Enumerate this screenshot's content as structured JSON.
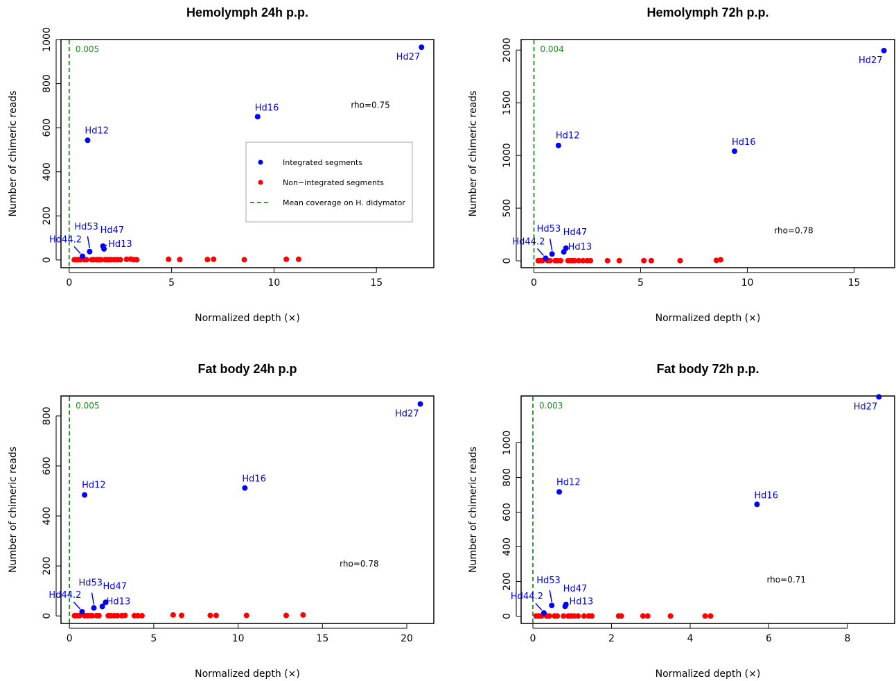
{
  "chart_data": [
    {
      "type": "scatter",
      "title": "Hemolymph 24h p.p.",
      "xlabel": "Normalized depth (×)",
      "ylabel": "Number of chimeric reads",
      "xlim": [
        -0.4,
        17.8
      ],
      "ylim": [
        -35,
        1000
      ],
      "xticks": [
        0,
        5,
        10,
        15
      ],
      "yticks": [
        0,
        200,
        400,
        600,
        800,
        1000
      ],
      "mean_coverage_value": "0.005",
      "rho": "rho=0.75",
      "integrated": [
        {
          "label": "Hd27",
          "x": 17.2,
          "y": 965
        },
        {
          "label": "Hd16",
          "x": 9.2,
          "y": 650
        },
        {
          "label": "Hd12",
          "x": 0.9,
          "y": 543
        },
        {
          "label": "Hd53",
          "x": 1.0,
          "y": 38
        },
        {
          "label": "Hd44.2",
          "x": 0.65,
          "y": 17
        },
        {
          "label": "Hd47",
          "x": 1.65,
          "y": 63
        },
        {
          "label": "Hd13",
          "x": 1.7,
          "y": 50
        }
      ],
      "non_integrated": [
        {
          "x": 0.25,
          "y": 1
        },
        {
          "x": 0.35,
          "y": 1
        },
        {
          "x": 0.45,
          "y": 1
        },
        {
          "x": 0.55,
          "y": 1
        },
        {
          "x": 0.75,
          "y": 1
        },
        {
          "x": 0.85,
          "y": 1
        },
        {
          "x": 1.1,
          "y": 1
        },
        {
          "x": 1.2,
          "y": 1
        },
        {
          "x": 1.35,
          "y": 1
        },
        {
          "x": 1.45,
          "y": 1
        },
        {
          "x": 1.55,
          "y": 1
        },
        {
          "x": 1.75,
          "y": 1
        },
        {
          "x": 1.85,
          "y": 1
        },
        {
          "x": 1.95,
          "y": 1
        },
        {
          "x": 2.05,
          "y": 1
        },
        {
          "x": 2.2,
          "y": 1
        },
        {
          "x": 2.35,
          "y": 1
        },
        {
          "x": 2.5,
          "y": 1
        },
        {
          "x": 2.8,
          "y": 3
        },
        {
          "x": 3.0,
          "y": 4
        },
        {
          "x": 3.15,
          "y": 1
        },
        {
          "x": 3.3,
          "y": 1
        },
        {
          "x": 4.85,
          "y": 3
        },
        {
          "x": 5.4,
          "y": 2
        },
        {
          "x": 6.75,
          "y": 2
        },
        {
          "x": 7.05,
          "y": 3
        },
        {
          "x": 8.55,
          "y": 1
        },
        {
          "x": 10.6,
          "y": 3
        },
        {
          "x": 11.2,
          "y": 3
        }
      ],
      "legend": {
        "position": "center-right",
        "entries": [
          "Integrated segments",
          "Non−integrated segments",
          "Mean coverage on H. didymator"
        ]
      }
    },
    {
      "type": "scatter",
      "title": "Hemolymph 72h p.p.",
      "xlabel": "Normalized depth (×)",
      "ylabel": "Number of chimeric reads",
      "xlim": [
        -0.6,
        16.9
      ],
      "ylim": [
        -65,
        2100
      ],
      "xticks": [
        0,
        5,
        10,
        15
      ],
      "yticks": [
        0,
        500,
        1000,
        1500,
        2000
      ],
      "mean_coverage_value": "0.004",
      "rho": "rho=0.78",
      "integrated": [
        {
          "label": "Hd27",
          "x": 16.4,
          "y": 1995
        },
        {
          "label": "Hd12",
          "x": 1.15,
          "y": 1095
        },
        {
          "label": "Hd16",
          "x": 9.4,
          "y": 1040
        },
        {
          "label": "Hd53",
          "x": 0.85,
          "y": 65
        },
        {
          "label": "Hd44.2",
          "x": 0.55,
          "y": 25
        },
        {
          "label": "Hd47",
          "x": 1.5,
          "y": 120
        },
        {
          "label": "Hd13",
          "x": 1.4,
          "y": 85
        }
      ],
      "non_integrated": [
        {
          "x": 0.2,
          "y": 2
        },
        {
          "x": 0.3,
          "y": 2
        },
        {
          "x": 0.4,
          "y": 2
        },
        {
          "x": 0.65,
          "y": 2
        },
        {
          "x": 0.75,
          "y": 2
        },
        {
          "x": 1.0,
          "y": 2
        },
        {
          "x": 1.1,
          "y": 2
        },
        {
          "x": 1.25,
          "y": 2
        },
        {
          "x": 1.6,
          "y": 2
        },
        {
          "x": 1.7,
          "y": 2
        },
        {
          "x": 1.8,
          "y": 2
        },
        {
          "x": 1.9,
          "y": 2
        },
        {
          "x": 2.1,
          "y": 2
        },
        {
          "x": 2.3,
          "y": 2
        },
        {
          "x": 2.5,
          "y": 2
        },
        {
          "x": 2.65,
          "y": 2
        },
        {
          "x": 3.45,
          "y": 2
        },
        {
          "x": 4.0,
          "y": 2
        },
        {
          "x": 5.15,
          "y": 2
        },
        {
          "x": 5.5,
          "y": 2
        },
        {
          "x": 6.85,
          "y": 2
        },
        {
          "x": 8.55,
          "y": 5
        },
        {
          "x": 8.75,
          "y": 10
        }
      ],
      "legend": null
    },
    {
      "type": "scatter",
      "title": "Fat body 24h p.p",
      "xlabel": "Normalized depth (×)",
      "ylabel": "Number of chimeric reads",
      "xlim": [
        -0.5,
        21.6
      ],
      "ylim": [
        -30,
        880
      ],
      "xticks": [
        0,
        5,
        10,
        15,
        20
      ],
      "yticks": [
        0,
        200,
        400,
        600,
        800
      ],
      "mean_coverage_value": "0.005",
      "rho": "rho=0.78",
      "integrated": [
        {
          "label": "Hd27",
          "x": 20.8,
          "y": 848
        },
        {
          "label": "Hd16",
          "x": 10.4,
          "y": 512
        },
        {
          "label": "Hd12",
          "x": 0.9,
          "y": 484
        },
        {
          "label": "Hd53",
          "x": 1.45,
          "y": 32
        },
        {
          "label": "Hd44.2",
          "x": 0.75,
          "y": 17
        },
        {
          "label": "Hd47",
          "x": 2.15,
          "y": 55
        },
        {
          "label": "Hd13",
          "x": 1.95,
          "y": 38
        }
      ],
      "non_integrated": [
        {
          "x": 0.3,
          "y": 1
        },
        {
          "x": 0.45,
          "y": 1
        },
        {
          "x": 0.6,
          "y": 1
        },
        {
          "x": 0.9,
          "y": 1
        },
        {
          "x": 1.05,
          "y": 1
        },
        {
          "x": 1.2,
          "y": 1
        },
        {
          "x": 1.35,
          "y": 1
        },
        {
          "x": 1.6,
          "y": 1
        },
        {
          "x": 1.75,
          "y": 1
        },
        {
          "x": 2.3,
          "y": 1
        },
        {
          "x": 2.45,
          "y": 1
        },
        {
          "x": 2.65,
          "y": 1
        },
        {
          "x": 2.85,
          "y": 1
        },
        {
          "x": 3.1,
          "y": 1
        },
        {
          "x": 3.3,
          "y": 2
        },
        {
          "x": 3.85,
          "y": 1
        },
        {
          "x": 4.05,
          "y": 1
        },
        {
          "x": 4.3,
          "y": 1
        },
        {
          "x": 6.15,
          "y": 4
        },
        {
          "x": 6.65,
          "y": 2
        },
        {
          "x": 8.35,
          "y": 2
        },
        {
          "x": 8.7,
          "y": 2
        },
        {
          "x": 10.5,
          "y": 2
        },
        {
          "x": 12.85,
          "y": 2
        },
        {
          "x": 13.85,
          "y": 4
        }
      ],
      "legend": null
    },
    {
      "type": "scatter",
      "title": "Fat body 72h p.p.",
      "xlabel": "Normalized depth (×)",
      "ylabel": "Number of chimeric reads",
      "xlim": [
        -0.3,
        9.2
      ],
      "ylim": [
        -42,
        1270
      ],
      "xticks": [
        0,
        2,
        4,
        6,
        8
      ],
      "yticks": [
        0,
        200,
        400,
        600,
        800,
        1000
      ],
      "mean_coverage_value": "0.003",
      "rho": "rho=0.71",
      "integrated": [
        {
          "label": "Hd27",
          "x": 8.8,
          "y": 1265
        },
        {
          "label": "Hd12",
          "x": 0.67,
          "y": 717
        },
        {
          "label": "Hd16",
          "x": 5.7,
          "y": 645
        },
        {
          "label": "Hd53",
          "x": 0.48,
          "y": 62
        },
        {
          "label": "Hd44.2",
          "x": 0.28,
          "y": 18
        },
        {
          "label": "Hd47",
          "x": 0.84,
          "y": 67
        },
        {
          "label": "Hd13",
          "x": 0.82,
          "y": 57
        }
      ],
      "non_integrated": [
        {
          "x": 0.08,
          "y": 1
        },
        {
          "x": 0.15,
          "y": 1
        },
        {
          "x": 0.22,
          "y": 1
        },
        {
          "x": 0.35,
          "y": 1
        },
        {
          "x": 0.42,
          "y": 1
        },
        {
          "x": 0.55,
          "y": 1
        },
        {
          "x": 0.62,
          "y": 1
        },
        {
          "x": 0.78,
          "y": 1
        },
        {
          "x": 0.9,
          "y": 1
        },
        {
          "x": 0.97,
          "y": 1
        },
        {
          "x": 1.05,
          "y": 1
        },
        {
          "x": 1.15,
          "y": 1
        },
        {
          "x": 1.3,
          "y": 1
        },
        {
          "x": 1.42,
          "y": 1
        },
        {
          "x": 1.5,
          "y": 1
        },
        {
          "x": 2.18,
          "y": 1
        },
        {
          "x": 2.25,
          "y": 1
        },
        {
          "x": 2.8,
          "y": 1
        },
        {
          "x": 2.92,
          "y": 1
        },
        {
          "x": 3.5,
          "y": 1
        },
        {
          "x": 4.38,
          "y": 1
        },
        {
          "x": 4.52,
          "y": 1
        }
      ],
      "legend": null
    }
  ],
  "colors": {
    "integrated": "#0000ff",
    "non_integrated": "#ff0000",
    "mean_coverage": "#228b22",
    "label": "#0000ee"
  }
}
